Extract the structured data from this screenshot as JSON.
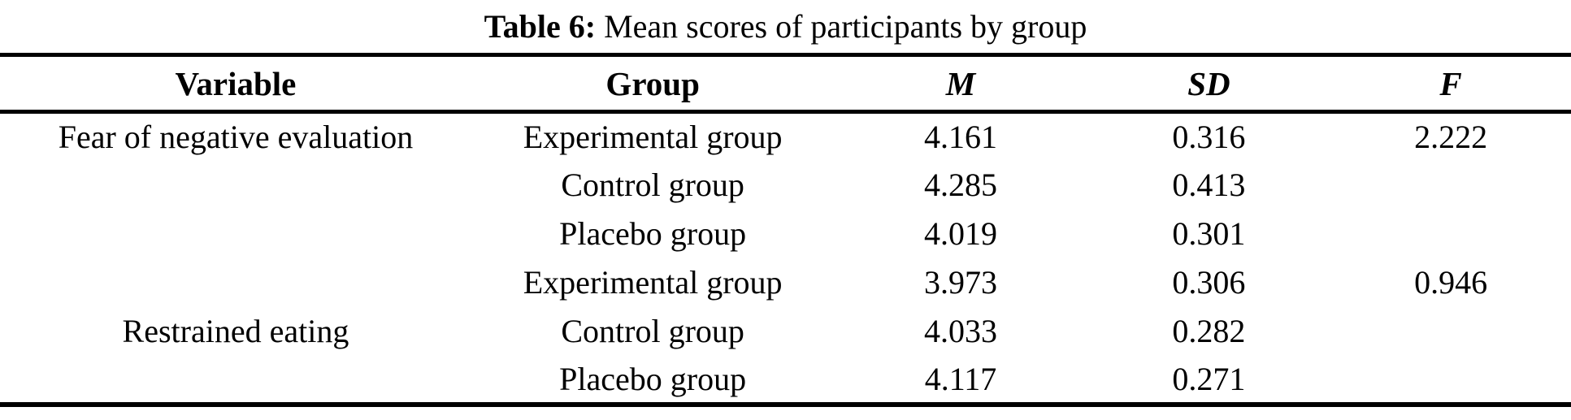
{
  "caption": {
    "label": "Table 6:",
    "text": " Mean scores of participants by group"
  },
  "table": {
    "columns": [
      "Variable",
      "Group",
      "M",
      "SD",
      "F"
    ],
    "rows": [
      {
        "variable": "Fear of negative evaluation",
        "group": "Experimental group",
        "m": "4.161",
        "sd": "0.316",
        "f": "2.222"
      },
      {
        "variable": "",
        "group": "Control group",
        "m": "4.285",
        "sd": "0.413",
        "f": ""
      },
      {
        "variable": "",
        "group": "Placebo group",
        "m": "4.019",
        "sd": "0.301",
        "f": ""
      },
      {
        "variable": "",
        "group": "Experimental group",
        "m": "3.973",
        "sd": "0.306",
        "f": "0.946"
      },
      {
        "variable": "Restrained eating",
        "group": "Control group",
        "m": "4.033",
        "sd": "0.282",
        "f": ""
      },
      {
        "variable": "",
        "group": "Placebo group",
        "m": "4.117",
        "sd": "0.271",
        "f": ""
      }
    ]
  },
  "colors": {
    "text": "#000000",
    "background": "#ffffff",
    "rule": "#000000"
  }
}
